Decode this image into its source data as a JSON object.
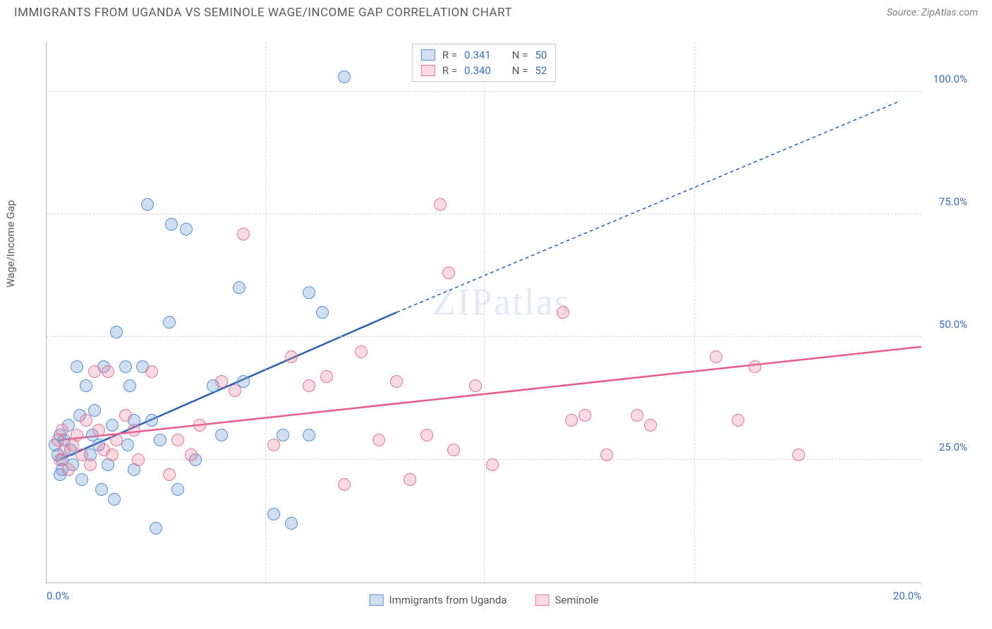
{
  "header": {
    "title": "IMMIGRANTS FROM UGANDA VS SEMINOLE WAGE/INCOME GAP CORRELATION CHART",
    "source": "Source: ZipAtlas.com"
  },
  "chart": {
    "type": "scatter",
    "ylabel": "Wage/Income Gap",
    "watermark": "ZIPatlas",
    "background_color": "#ffffff",
    "grid_color": "#d8d8d8",
    "axis_color": "#b0b0b0",
    "tick_label_color": "#3b6fb6",
    "label_fontsize": 15,
    "xlim": [
      0,
      20
    ],
    "ylim": [
      0,
      110
    ],
    "xticks": [
      0,
      5,
      10,
      14.8,
      20
    ],
    "xtick_labels": [
      "0.0%",
      "",
      "",
      "",
      "20.0%"
    ],
    "yticks": [
      25,
      50,
      75,
      100
    ],
    "ytick_labels": [
      "25.0%",
      "50.0%",
      "75.0%",
      "100.0%"
    ],
    "marker_radius": 9,
    "series": [
      {
        "name": "Immigrants from Uganda",
        "color_fill": "rgba(120,160,215,0.35)",
        "color_stroke": "#5a8fd4",
        "R_label": "R =",
        "R_value": "0.341",
        "N_label": "N =",
        "N_value": "50",
        "trend": {
          "x1": 0.3,
          "y1": 25,
          "x2": 8.0,
          "y2": 55,
          "xdash": 19.5,
          "ydash": 98,
          "color": "#2b5fb0",
          "width": 2.5
        },
        "points": [
          [
            0.2,
            28
          ],
          [
            0.25,
            26
          ],
          [
            0.3,
            30
          ],
          [
            0.35,
            25
          ],
          [
            0.35,
            23
          ],
          [
            0.3,
            22
          ],
          [
            0.4,
            29
          ],
          [
            0.5,
            32
          ],
          [
            0.55,
            27
          ],
          [
            0.6,
            24
          ],
          [
            0.7,
            44
          ],
          [
            0.75,
            34
          ],
          [
            0.8,
            21
          ],
          [
            0.9,
            40
          ],
          [
            1.0,
            26
          ],
          [
            1.05,
            30
          ],
          [
            1.1,
            35
          ],
          [
            1.2,
            28
          ],
          [
            1.25,
            19
          ],
          [
            1.3,
            44
          ],
          [
            1.4,
            24
          ],
          [
            1.5,
            32
          ],
          [
            1.55,
            17
          ],
          [
            1.6,
            51
          ],
          [
            1.8,
            44
          ],
          [
            1.85,
            28
          ],
          [
            1.9,
            40
          ],
          [
            2.0,
            23
          ],
          [
            2.2,
            44
          ],
          [
            2.3,
            77
          ],
          [
            2.4,
            33
          ],
          [
            2.6,
            29
          ],
          [
            2.8,
            53
          ],
          [
            2.85,
            73
          ],
          [
            3.0,
            19
          ],
          [
            3.2,
            72
          ],
          [
            3.4,
            25
          ],
          [
            3.8,
            40
          ],
          [
            4.0,
            30
          ],
          [
            4.4,
            60
          ],
          [
            4.5,
            41
          ],
          [
            5.2,
            14
          ],
          [
            5.4,
            30
          ],
          [
            5.6,
            12
          ],
          [
            6.0,
            59
          ],
          [
            6.3,
            55
          ],
          [
            6.8,
            103
          ],
          [
            6.0,
            30
          ],
          [
            2.0,
            33
          ],
          [
            2.5,
            11
          ]
        ]
      },
      {
        "name": "Seminole",
        "color_fill": "rgba(235,130,160,0.3)",
        "color_stroke": "#e07a9a",
        "R_label": "R =",
        "R_value": "0.340",
        "N_label": "N =",
        "N_value": "52",
        "trend": {
          "x1": 0.3,
          "y1": 29,
          "x2": 20,
          "y2": 48,
          "color": "#e85a8a",
          "width": 2.5
        },
        "points": [
          [
            0.25,
            29
          ],
          [
            0.3,
            25
          ],
          [
            0.35,
            31
          ],
          [
            0.4,
            27
          ],
          [
            0.5,
            23
          ],
          [
            0.6,
            28
          ],
          [
            0.7,
            30
          ],
          [
            0.8,
            26
          ],
          [
            0.9,
            33
          ],
          [
            1.0,
            24
          ],
          [
            1.1,
            43
          ],
          [
            1.2,
            31
          ],
          [
            1.3,
            27
          ],
          [
            1.4,
            43
          ],
          [
            1.5,
            26
          ],
          [
            1.6,
            29
          ],
          [
            1.8,
            34
          ],
          [
            2.0,
            31
          ],
          [
            2.1,
            25
          ],
          [
            2.4,
            43
          ],
          [
            2.8,
            22
          ],
          [
            3.0,
            29
          ],
          [
            3.3,
            26
          ],
          [
            3.5,
            32
          ],
          [
            4.0,
            41
          ],
          [
            4.3,
            39
          ],
          [
            4.5,
            71
          ],
          [
            5.2,
            28
          ],
          [
            5.6,
            46
          ],
          [
            6.0,
            40
          ],
          [
            6.4,
            42
          ],
          [
            6.8,
            20
          ],
          [
            7.2,
            47
          ],
          [
            7.6,
            29
          ],
          [
            8.0,
            41
          ],
          [
            8.3,
            21
          ],
          [
            8.7,
            30
          ],
          [
            9.0,
            77
          ],
          [
            9.2,
            63
          ],
          [
            9.3,
            27
          ],
          [
            10.2,
            24
          ],
          [
            11.8,
            55
          ],
          [
            12.0,
            33
          ],
          [
            12.3,
            34
          ],
          [
            12.8,
            26
          ],
          [
            13.5,
            34
          ],
          [
            15.3,
            46
          ],
          [
            15.8,
            33
          ],
          [
            16.2,
            44
          ],
          [
            17.2,
            26
          ],
          [
            13.8,
            32
          ],
          [
            9.8,
            40
          ]
        ]
      }
    ],
    "legend_bottom": [
      {
        "label": "Immigrants from Uganda",
        "swatch": "blue"
      },
      {
        "label": "Seminole",
        "swatch": "pink"
      }
    ]
  }
}
